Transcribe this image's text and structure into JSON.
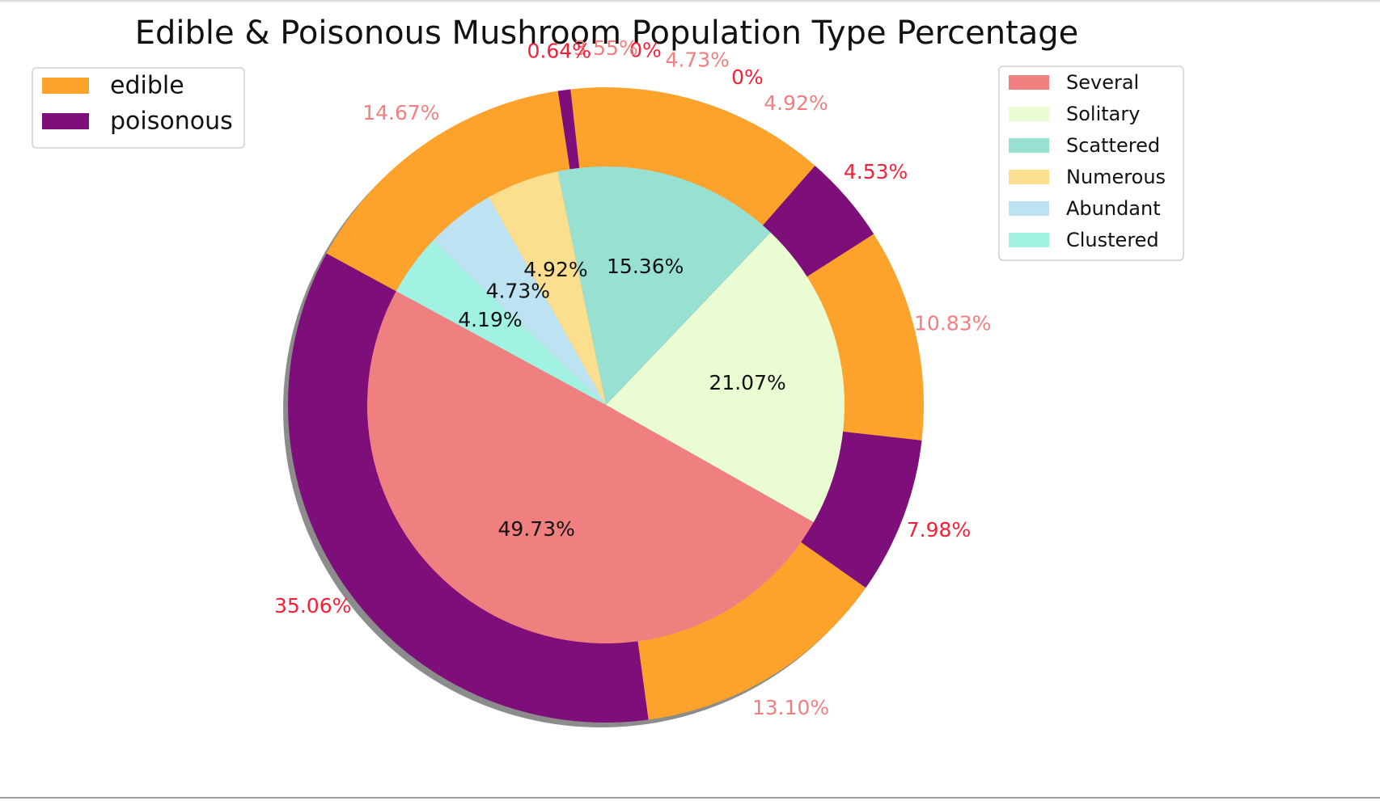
{
  "chart_data": {
    "type": "pie",
    "title": "Edible & Poisonous Mushroom Population Type Percentage",
    "inner": {
      "categories": [
        "Several",
        "Solitary",
        "Scattered",
        "Numerous",
        "Abundant",
        "Clustered"
      ],
      "values": [
        49.73,
        21.07,
        15.36,
        4.92,
        4.73,
        4.19
      ],
      "labels": [
        "49.73%",
        "21.07%",
        "15.36%",
        "4.92%",
        "4.73%",
        "4.19%"
      ],
      "colors": [
        "#f08080",
        "#eafcd2",
        "#97e0d2",
        "#fbdf8e",
        "#bde3f2",
        "#a2f2e4"
      ]
    },
    "outer": {
      "values": [
        35.06,
        13.1,
        7.98,
        10.83,
        4.53,
        4.92,
        0,
        4.73,
        0,
        3.55,
        0.64,
        14.67
      ],
      "labels": [
        "35.06%",
        "13.10%",
        "7.98%",
        "10.83%",
        "4.53%",
        "4.92%",
        "0%",
        "4.73%",
        "0%",
        "3.55%",
        "0.64%",
        "14.67%"
      ],
      "classes": [
        "poisonous",
        "edible",
        "poisonous",
        "edible",
        "poisonous",
        "edible",
        "poisonous",
        "edible",
        "poisonous",
        "edible",
        "poisonous",
        "edible"
      ]
    },
    "classes": {
      "edible": {
        "label": "edible",
        "color": "#fda22b",
        "label_color": "#f08080"
      },
      "poisonous": {
        "label": "poisonous",
        "color": "#7e0f7a",
        "label_color": "#f52038"
      }
    },
    "legend_classes_position": "top-left",
    "legend_population_position": "top-right",
    "shadow": true
  }
}
